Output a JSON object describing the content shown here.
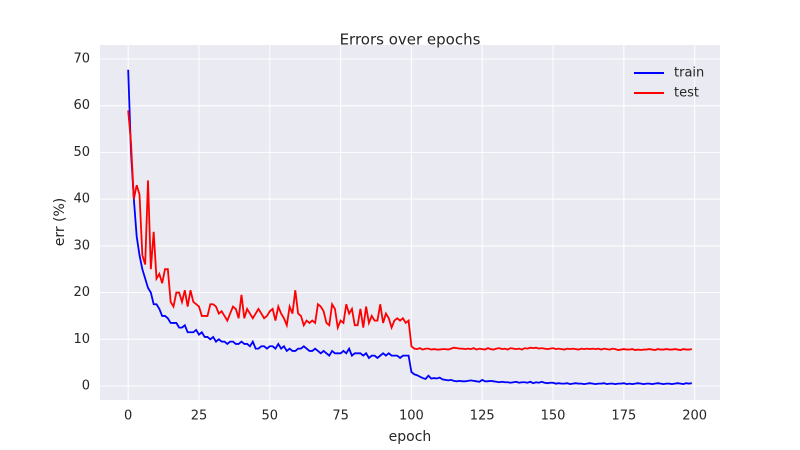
{
  "chart_data": {
    "type": "line",
    "title": "Errors over epochs",
    "xlabel": "epoch",
    "ylabel": "err (%)",
    "x": [
      0,
      1,
      2,
      3,
      4,
      5,
      6,
      7,
      8,
      9,
      10,
      11,
      12,
      13,
      14,
      15,
      16,
      17,
      18,
      19,
      20,
      21,
      22,
      23,
      24,
      25,
      26,
      27,
      28,
      29,
      30,
      31,
      32,
      33,
      34,
      35,
      36,
      37,
      38,
      39,
      40,
      41,
      42,
      43,
      44,
      45,
      46,
      47,
      48,
      49,
      50,
      51,
      52,
      53,
      54,
      55,
      56,
      57,
      58,
      59,
      60,
      61,
      62,
      63,
      64,
      65,
      66,
      67,
      68,
      69,
      70,
      71,
      72,
      73,
      74,
      75,
      76,
      77,
      78,
      79,
      80,
      81,
      82,
      83,
      84,
      85,
      86,
      87,
      88,
      89,
      90,
      91,
      92,
      93,
      94,
      95,
      96,
      97,
      98,
      99,
      100,
      101,
      102,
      103,
      104,
      105,
      106,
      107,
      108,
      109,
      110,
      111,
      112,
      113,
      114,
      115,
      116,
      117,
      118,
      119,
      120,
      121,
      122,
      123,
      124,
      125,
      126,
      127,
      128,
      129,
      130,
      131,
      132,
      133,
      134,
      135,
      136,
      137,
      138,
      139,
      140,
      141,
      142,
      143,
      144,
      145,
      146,
      147,
      148,
      149,
      150,
      151,
      152,
      153,
      154,
      155,
      156,
      157,
      158,
      159,
      160,
      161,
      162,
      163,
      164,
      165,
      166,
      167,
      168,
      169,
      170,
      171,
      172,
      173,
      174,
      175,
      176,
      177,
      178,
      179,
      180,
      181,
      182,
      183,
      184,
      185,
      186,
      187,
      188,
      189,
      190,
      191,
      192,
      193,
      194,
      195,
      196,
      197,
      198,
      199
    ],
    "series": [
      {
        "name": "train",
        "color": "#0000ff",
        "values": [
          67.7,
          50,
          40,
          32,
          28,
          25,
          23,
          21,
          20,
          17.5,
          17.5,
          16.5,
          15,
          15,
          14.5,
          13.5,
          13.5,
          13.5,
          12.5,
          12.5,
          13,
          11.5,
          11.5,
          11.5,
          12,
          11,
          11.5,
          10.5,
          10.5,
          10,
          10.5,
          9.5,
          10,
          9.5,
          9.5,
          9,
          9.5,
          9.5,
          9,
          9,
          9.5,
          9,
          9,
          8.5,
          9.5,
          8,
          8,
          8.5,
          8.5,
          8,
          8.5,
          8.5,
          8,
          9,
          8,
          8.5,
          7.5,
          8,
          7.5,
          7.5,
          8,
          8,
          8.5,
          8,
          7.5,
          7.5,
          8,
          7.5,
          7,
          7.5,
          7,
          6.5,
          7.5,
          7,
          7,
          7,
          7.5,
          7,
          8,
          6.5,
          7,
          7,
          7,
          6.5,
          7,
          6,
          6.5,
          6.5,
          6,
          6.5,
          7,
          6.5,
          7,
          6.5,
          6.5,
          6.5,
          6,
          6.5,
          6.5,
          6.5,
          3,
          2.5,
          2.3,
          2,
          1.7,
          1.5,
          2.2,
          1.6,
          1.7,
          1.6,
          1.8,
          1.4,
          1.3,
          1.2,
          1.3,
          1.1,
          1.0,
          1.1,
          1.0,
          1.0,
          1.1,
          1.2,
          1.1,
          1.0,
          0.9,
          1.3,
          1.0,
          1.0,
          1.1,
          1.0,
          0.9,
          0.8,
          0.9,
          0.8,
          0.8,
          0.7,
          0.8,
          0.9,
          0.7,
          0.8,
          0.8,
          0.7,
          0.9,
          0.6,
          0.8,
          0.7,
          0.9,
          0.7,
          0.6,
          0.7,
          0.7,
          0.5,
          0.6,
          0.5,
          0.5,
          0.6,
          0.4,
          0.5,
          0.6,
          0.5,
          0.5,
          0.4,
          0.5,
          0.6,
          0.5,
          0.4,
          0.5,
          0.5,
          0.6,
          0.4,
          0.5,
          0.5,
          0.4,
          0.5,
          0.5,
          0.6,
          0.4,
          0.5,
          0.4,
          0.5,
          0.6,
          0.5,
          0.4,
          0.5,
          0.5,
          0.4,
          0.5,
          0.6,
          0.5,
          0.4,
          0.5,
          0.5,
          0.4,
          0.5,
          0.6,
          0.5,
          0.4,
          0.6,
          0.5,
          0.6
        ]
      },
      {
        "name": "test",
        "color": "#ff0000",
        "values": [
          59,
          52,
          40,
          43,
          41,
          28,
          26,
          44,
          25,
          33,
          23,
          24,
          22,
          25,
          25,
          18,
          17,
          20,
          20,
          18,
          20.5,
          17,
          20.5,
          18,
          17.5,
          17,
          15,
          15,
          15,
          17.5,
          17.5,
          17,
          15.5,
          16,
          15,
          14,
          15.5,
          17,
          16.5,
          14.5,
          19.5,
          14.5,
          16.5,
          15.5,
          14.5,
          15.5,
          16.5,
          15.5,
          14.5,
          15,
          16,
          16.5,
          14,
          17,
          15.5,
          14.5,
          13,
          17,
          15.5,
          20.5,
          15.5,
          15,
          13,
          14,
          13.5,
          14,
          13.5,
          17.5,
          17,
          16,
          13.5,
          13,
          17.5,
          16.5,
          12.5,
          14,
          13.5,
          17.5,
          15.5,
          16.5,
          13,
          13,
          16.5,
          12.5,
          17,
          13.5,
          15,
          14,
          14,
          17.5,
          13.5,
          15.5,
          14.5,
          12.5,
          14,
          14.5,
          14,
          14.5,
          13.5,
          14,
          8.5,
          8.0,
          7.9,
          8.1,
          7.8,
          8.0,
          8.0,
          7.8,
          7.9,
          7.8,
          7.8,
          7.9,
          7.9,
          7.8,
          8.0,
          8.2,
          8.1,
          8.0,
          8.0,
          7.9,
          8.0,
          7.9,
          8.1,
          7.8,
          8.0,
          7.9,
          7.8,
          8.1,
          7.9,
          7.8,
          8.0,
          8.1,
          7.9,
          8.0,
          7.8,
          8.1,
          8.0,
          7.9,
          8.0,
          7.8,
          8.1,
          8.0,
          8.2,
          8.1,
          8.2,
          8.0,
          8.1,
          8.0,
          7.9,
          8.0,
          8.1,
          7.9,
          8.0,
          7.9,
          7.8,
          8.0,
          7.9,
          8.0,
          7.9,
          7.8,
          8.0,
          7.9,
          8.0,
          7.9,
          8.0,
          7.9,
          8.0,
          7.8,
          8.0,
          7.9,
          7.8,
          8.0,
          7.9,
          7.7,
          7.8,
          7.9,
          7.8,
          7.8,
          7.9,
          7.7,
          7.8,
          7.7,
          7.8,
          7.8,
          7.9,
          7.8,
          7.7,
          7.9,
          7.8,
          7.8,
          7.9,
          7.8,
          7.8,
          7.9,
          7.8,
          7.7,
          7.9,
          7.8,
          7.8,
          7.9
        ]
      }
    ],
    "xlim": [
      -9.95,
      208.95
    ],
    "xticks": [
      0,
      25,
      50,
      75,
      100,
      125,
      150,
      175,
      200
    ],
    "ylim": [
      -3,
      73
    ],
    "yticks": [
      0,
      10,
      20,
      30,
      40,
      50,
      60,
      70
    ],
    "grid": true,
    "legend": "upper right"
  }
}
